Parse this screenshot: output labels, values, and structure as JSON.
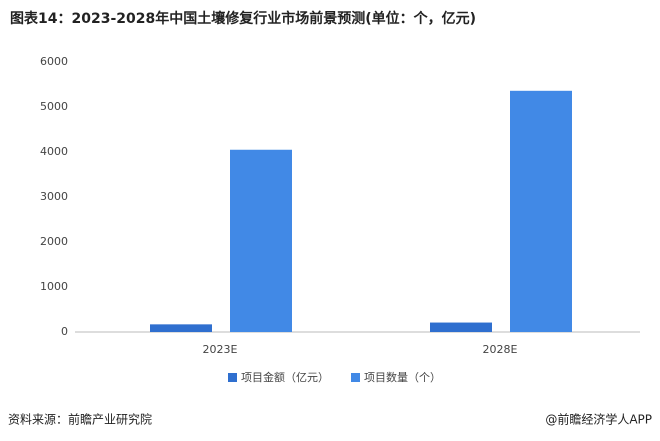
{
  "chart_data": {
    "type": "bar",
    "title": "图表14：2023-2028年中国土壤修复行业市场前景预测(单位：个，亿元)",
    "categories": [
      "2023E",
      "2028E"
    ],
    "series": [
      {
        "name": "项目金额（亿元）",
        "color": "#2f6fcf",
        "values": [
          170,
          210
        ]
      },
      {
        "name": "项目数量（个）",
        "color": "#4189e6",
        "values": [
          4050,
          5360
        ]
      }
    ],
    "ylim": [
      0,
      6000
    ],
    "yticks": [
      0,
      1000,
      2000,
      3000,
      4000,
      5000,
      6000
    ],
    "grid": false,
    "legend": "bottom",
    "source": "资料来源：前瞻产业研究院",
    "credit": "@前瞻经济学人APP"
  }
}
